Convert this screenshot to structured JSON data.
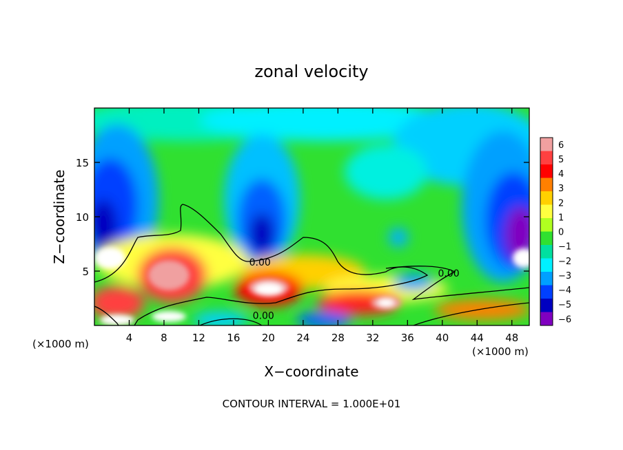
{
  "chart_data": {
    "type": "heatmap",
    "title": "zonal velocity",
    "xlabel": "X−coordinate",
    "ylabel": "Z−coordinate",
    "x_unit_left": "(×1000 m)",
    "x_unit_right": "(×1000 m)",
    "xlim": [
      0,
      50
    ],
    "ylim": [
      0,
      20
    ],
    "x_ticks": [
      4,
      8,
      12,
      16,
      20,
      24,
      28,
      32,
      36,
      40,
      44,
      48
    ],
    "y_ticks": [
      5,
      10,
      15
    ],
    "contour_labels": [
      {
        "text": "0.00",
        "x": 17.8,
        "y": 5.5
      },
      {
        "text": "0.00",
        "x": 18.2,
        "y": 0.6
      },
      {
        "text": "0.00",
        "x": 39.5,
        "y": 4.5
      }
    ],
    "footer": "CONTOUR INTERVAL = 1.000E+01",
    "colorbar": {
      "ticks": [
        "6",
        "5",
        "4",
        "3",
        "2",
        "1",
        "0",
        "−1",
        "−2",
        "−3",
        "−4",
        "−5",
        "−6"
      ],
      "colors": [
        "#f0a0a0",
        "#ff4040",
        "#ff0000",
        "#ff8000",
        "#ffd000",
        "#ffff40",
        "#b0ff20",
        "#30e030",
        "#00e0a0",
        "#00f0ff",
        "#00a0ff",
        "#0040ff",
        "#0000c0",
        "#8000c0"
      ]
    }
  }
}
